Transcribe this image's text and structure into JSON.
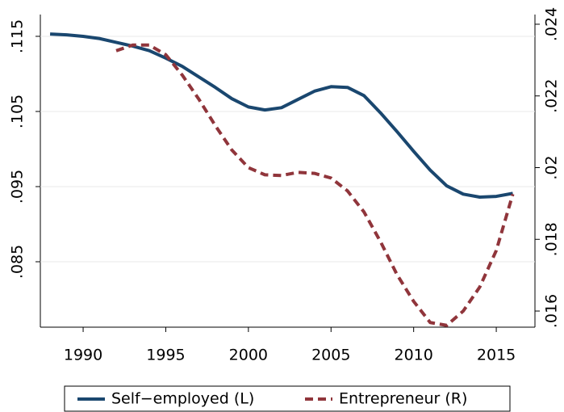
{
  "chart_data": {
    "type": "line",
    "x": [
      1988,
      1989,
      1990,
      1991,
      1992,
      1993,
      1994,
      1995,
      1996,
      1997,
      1998,
      1999,
      2000,
      2001,
      2002,
      2003,
      2004,
      2005,
      2006,
      2007,
      2008,
      2009,
      2010,
      2011,
      2012,
      2013,
      2014,
      2015,
      2016
    ],
    "series": [
      {
        "name": "Self−employed (L)",
        "color": "#1a476f",
        "dash": false,
        "values": [
          0.1153,
          0.1152,
          0.115,
          0.1147,
          0.1142,
          0.1137,
          0.1131,
          0.1121,
          0.111,
          0.1096,
          0.1082,
          0.1067,
          0.1056,
          0.1052,
          0.1055,
          0.1066,
          0.1077,
          0.1083,
          0.1082,
          0.1071,
          0.1048,
          0.1023,
          0.0997,
          0.0972,
          0.0951,
          0.094,
          0.0936,
          0.0937,
          0.0941
        ]
      },
      {
        "name": "Entrepreneur (R)",
        "color": "#90353b",
        "dash": true,
        "axis": "y2",
        "values": [
          null,
          null,
          null,
          null,
          0.02326,
          0.02342,
          0.02342,
          0.02315,
          0.02258,
          0.02191,
          0.02117,
          0.02049,
          0.02,
          0.0198,
          0.01978,
          0.01987,
          0.01984,
          0.01971,
          0.01935,
          0.01876,
          0.01793,
          0.01701,
          0.01627,
          0.01568,
          0.0156,
          0.016,
          0.01667,
          0.01769,
          0.01926
        ]
      }
    ],
    "xlim": [
      1987.41,
      2017.34
    ],
    "xticks": [
      1990,
      1995,
      2000,
      2005,
      2010,
      2015
    ],
    "ylim": [
      0.07629,
      0.1179
    ],
    "yticks": [
      {
        "value": 0.085,
        "label": ".085"
      },
      {
        "value": 0.095,
        "label": ".095"
      },
      {
        "value": 0.105,
        "label": ".105"
      },
      {
        "value": 0.115,
        "label": ".115"
      }
    ],
    "y2lim": [
      0.01555,
      0.02427
    ],
    "y2ticks": [
      {
        "value": 0.016,
        "label": ".016"
      },
      {
        "value": 0.018,
        "label": ".018"
      },
      {
        "value": 0.02,
        "label": ".02"
      },
      {
        "value": 0.022,
        "label": ".022"
      },
      {
        "value": 0.024,
        "label": ".024"
      }
    ],
    "grid": true
  }
}
